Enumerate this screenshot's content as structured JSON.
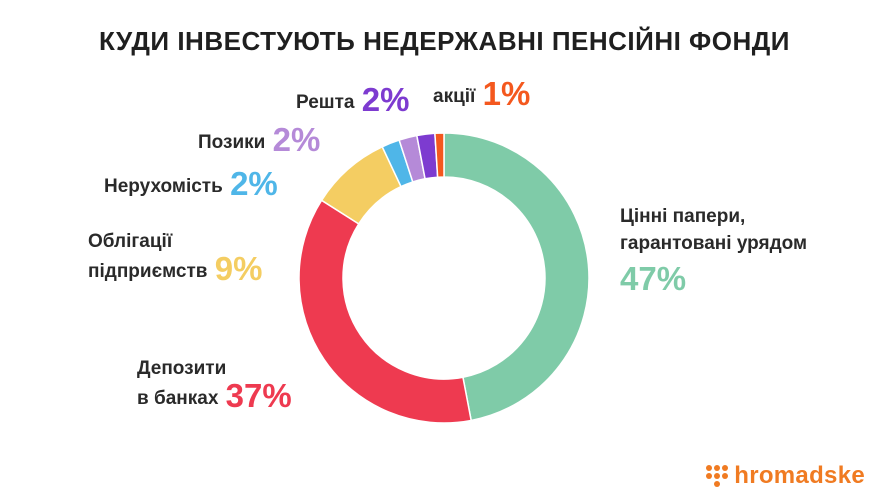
{
  "title": "КУДИ ІНВЕСТУЮТЬ НЕДЕРЖАВНІ ПЕНСІЙНІ ФОНДИ",
  "brand": {
    "name": "hromadske",
    "color": "#f07b22"
  },
  "chart_data": {
    "type": "pie",
    "donut": true,
    "title": "КУДИ ІНВЕСТУЮТЬ НЕДЕРЖАВНІ ПЕНСІЙНІ ФОНДИ",
    "categories": [
      "Цінні папери, гарантовані урядом",
      "Депозити в банках",
      "Облігації підприємств",
      "Нерухомість",
      "Позики",
      "Решта",
      "акції"
    ],
    "values": [
      47,
      37,
      9,
      2,
      2,
      2,
      1
    ],
    "value_labels": [
      "47%",
      "37%",
      "9%",
      "2%",
      "2%",
      "2%",
      "1%"
    ],
    "colors": [
      "#7fcba8",
      "#ee3a50",
      "#f4cd62",
      "#4fb6e8",
      "#b58ad8",
      "#7d3bd0",
      "#f4581e"
    ]
  },
  "labels": {
    "gov": {
      "line1": "Цінні папери,",
      "line2": "гарантовані урядом"
    },
    "dep": {
      "line1": "Депозити",
      "line2": "в банках"
    },
    "bonds": {
      "line1": "Облігації",
      "line2": "підприємств"
    },
    "realty": {
      "line1": "Нерухомість"
    },
    "loans": {
      "line1": "Позики"
    },
    "rest": {
      "line1": "Решта"
    },
    "stocks": {
      "line1": "акції"
    }
  }
}
